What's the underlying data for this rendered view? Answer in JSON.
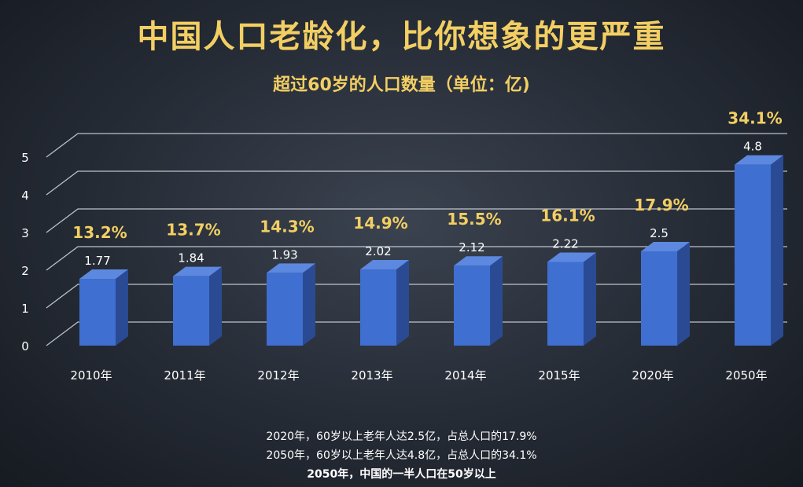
{
  "header": {
    "title": "中国人口老龄化，比你想象的更严重",
    "subtitle": "超过60岁的人口数量（单位：亿)"
  },
  "notes": [
    "2020年，60岁以上老年人达2.5亿，占总人口的17.9%",
    "2050年，60岁以上老年人达4.8亿，占总人口的34.1%",
    "2050年，中国的一半人口在50岁以上"
  ],
  "colors": {
    "bar_front": "#3f6fd0",
    "bar_side": "#2a4b94",
    "bar_top": "#5d88e0",
    "percent_label": "#f3cf63",
    "text": "#ffffff",
    "grid": "#d9dde4"
  },
  "chart_data": {
    "type": "bar",
    "title": "超过60岁的人口数量（单位：亿)",
    "categories": [
      "2010年",
      "2011年",
      "2012年",
      "2013年",
      "2014年",
      "2015年",
      "2020年",
      "2050年"
    ],
    "values": [
      1.77,
      1.84,
      1.93,
      2.02,
      2.12,
      2.22,
      2.5,
      4.8
    ],
    "value_labels": [
      "1.77",
      "1.84",
      "1.93",
      "2.02",
      "2.12",
      "2.22",
      "2.5",
      "4.8"
    ],
    "percent_labels": [
      "13.2%",
      "13.7%",
      "14.3%",
      "14.9%",
      "15.5%",
      "16.1%",
      "17.9%",
      "34.1%"
    ],
    "yticks": [
      "0",
      "1",
      "2",
      "3",
      "4",
      "5"
    ],
    "ylim": [
      0,
      5
    ],
    "grid": true,
    "legend": "none"
  }
}
